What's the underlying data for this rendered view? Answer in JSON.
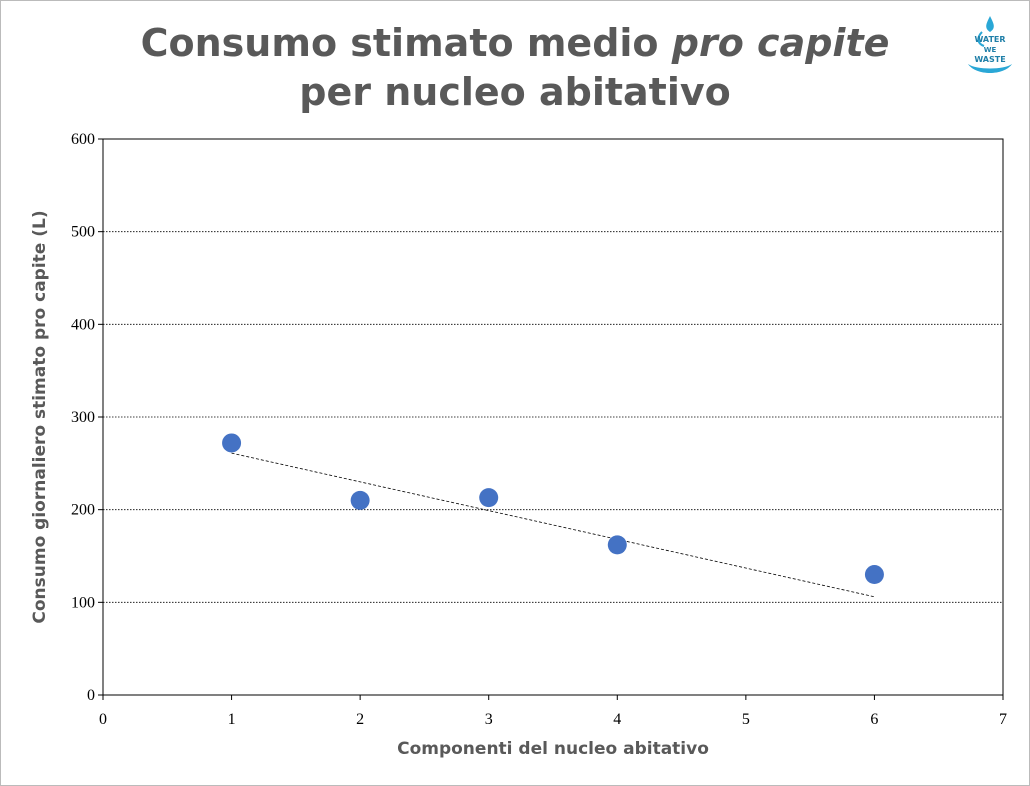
{
  "title_part1": "Consumo stimato medio ",
  "title_italic": "pro capite",
  "title_line2": "per nucleo abitativo",
  "logo_text": "WATER WE WASTE",
  "colors": {
    "point": "#4472C4",
    "title": "#595959"
  },
  "chart_data": {
    "type": "scatter",
    "title": "Consumo stimato medio pro capite per nucleo abitativo",
    "xlabel": "Componenti del nucleo abitativo",
    "ylabel": "Consumo giornaliero stimato pro capite (L)",
    "xlim": [
      0,
      7
    ],
    "ylim": [
      0,
      600
    ],
    "xticks": [
      "0",
      "1",
      "2",
      "3",
      "4",
      "5",
      "6",
      "7"
    ],
    "yticks": [
      "0",
      "100",
      "200",
      "300",
      "400",
      "500",
      "600"
    ],
    "grid": "horizontal dotted",
    "points": [
      {
        "x": 1,
        "y": 272
      },
      {
        "x": 2,
        "y": 210
      },
      {
        "x": 3,
        "y": 213
      },
      {
        "x": 4,
        "y": 162
      },
      {
        "x": 6,
        "y": 130
      }
    ],
    "trendline": {
      "type": "linear",
      "from": {
        "x": 1,
        "y": 261
      },
      "to": {
        "x": 6,
        "y": 106
      }
    }
  }
}
